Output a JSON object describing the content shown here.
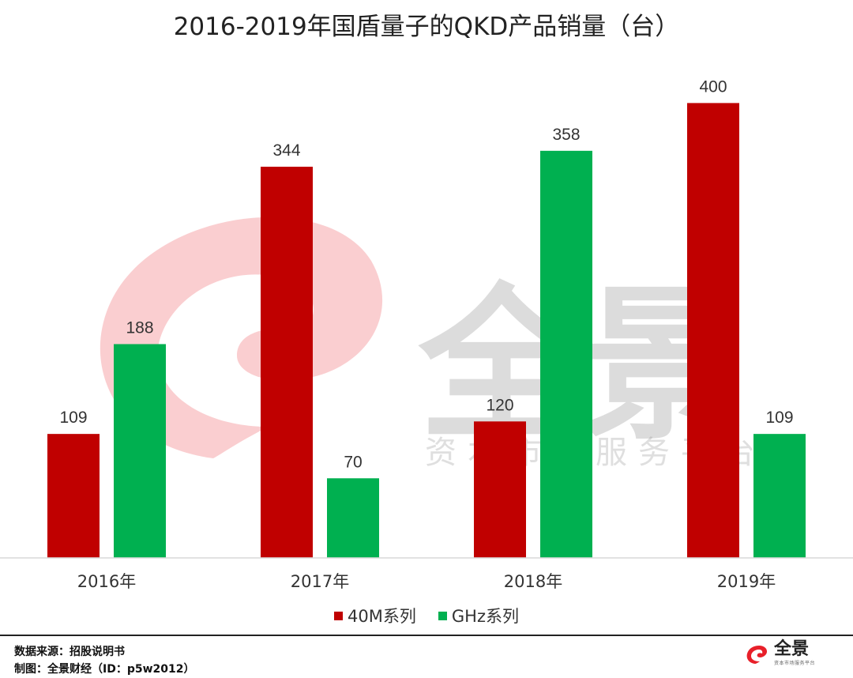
{
  "title": "2016-2019年国盾量子的QKD产品销量（台）",
  "chart_data": {
    "type": "bar",
    "categories": [
      "2016年",
      "2017年",
      "2018年",
      "2019年"
    ],
    "series": [
      {
        "name": "40M系列",
        "color": "#C00000",
        "values": [
          109,
          344,
          120,
          400
        ]
      },
      {
        "name": "GHz系列",
        "color": "#00B050",
        "values": [
          188,
          70,
          358,
          109
        ]
      }
    ],
    "ylim": [
      0,
      410
    ],
    "grid": false,
    "legend_position": "bottom"
  },
  "watermark": {
    "main": "全景",
    "sub": "资本市场服务平台"
  },
  "footer": {
    "source": "数据来源：招股说明书",
    "credit": "制图：全景财经（ID：p5w2012）"
  },
  "brand": {
    "name": "全景",
    "tagline": "资本市场服务平台"
  }
}
